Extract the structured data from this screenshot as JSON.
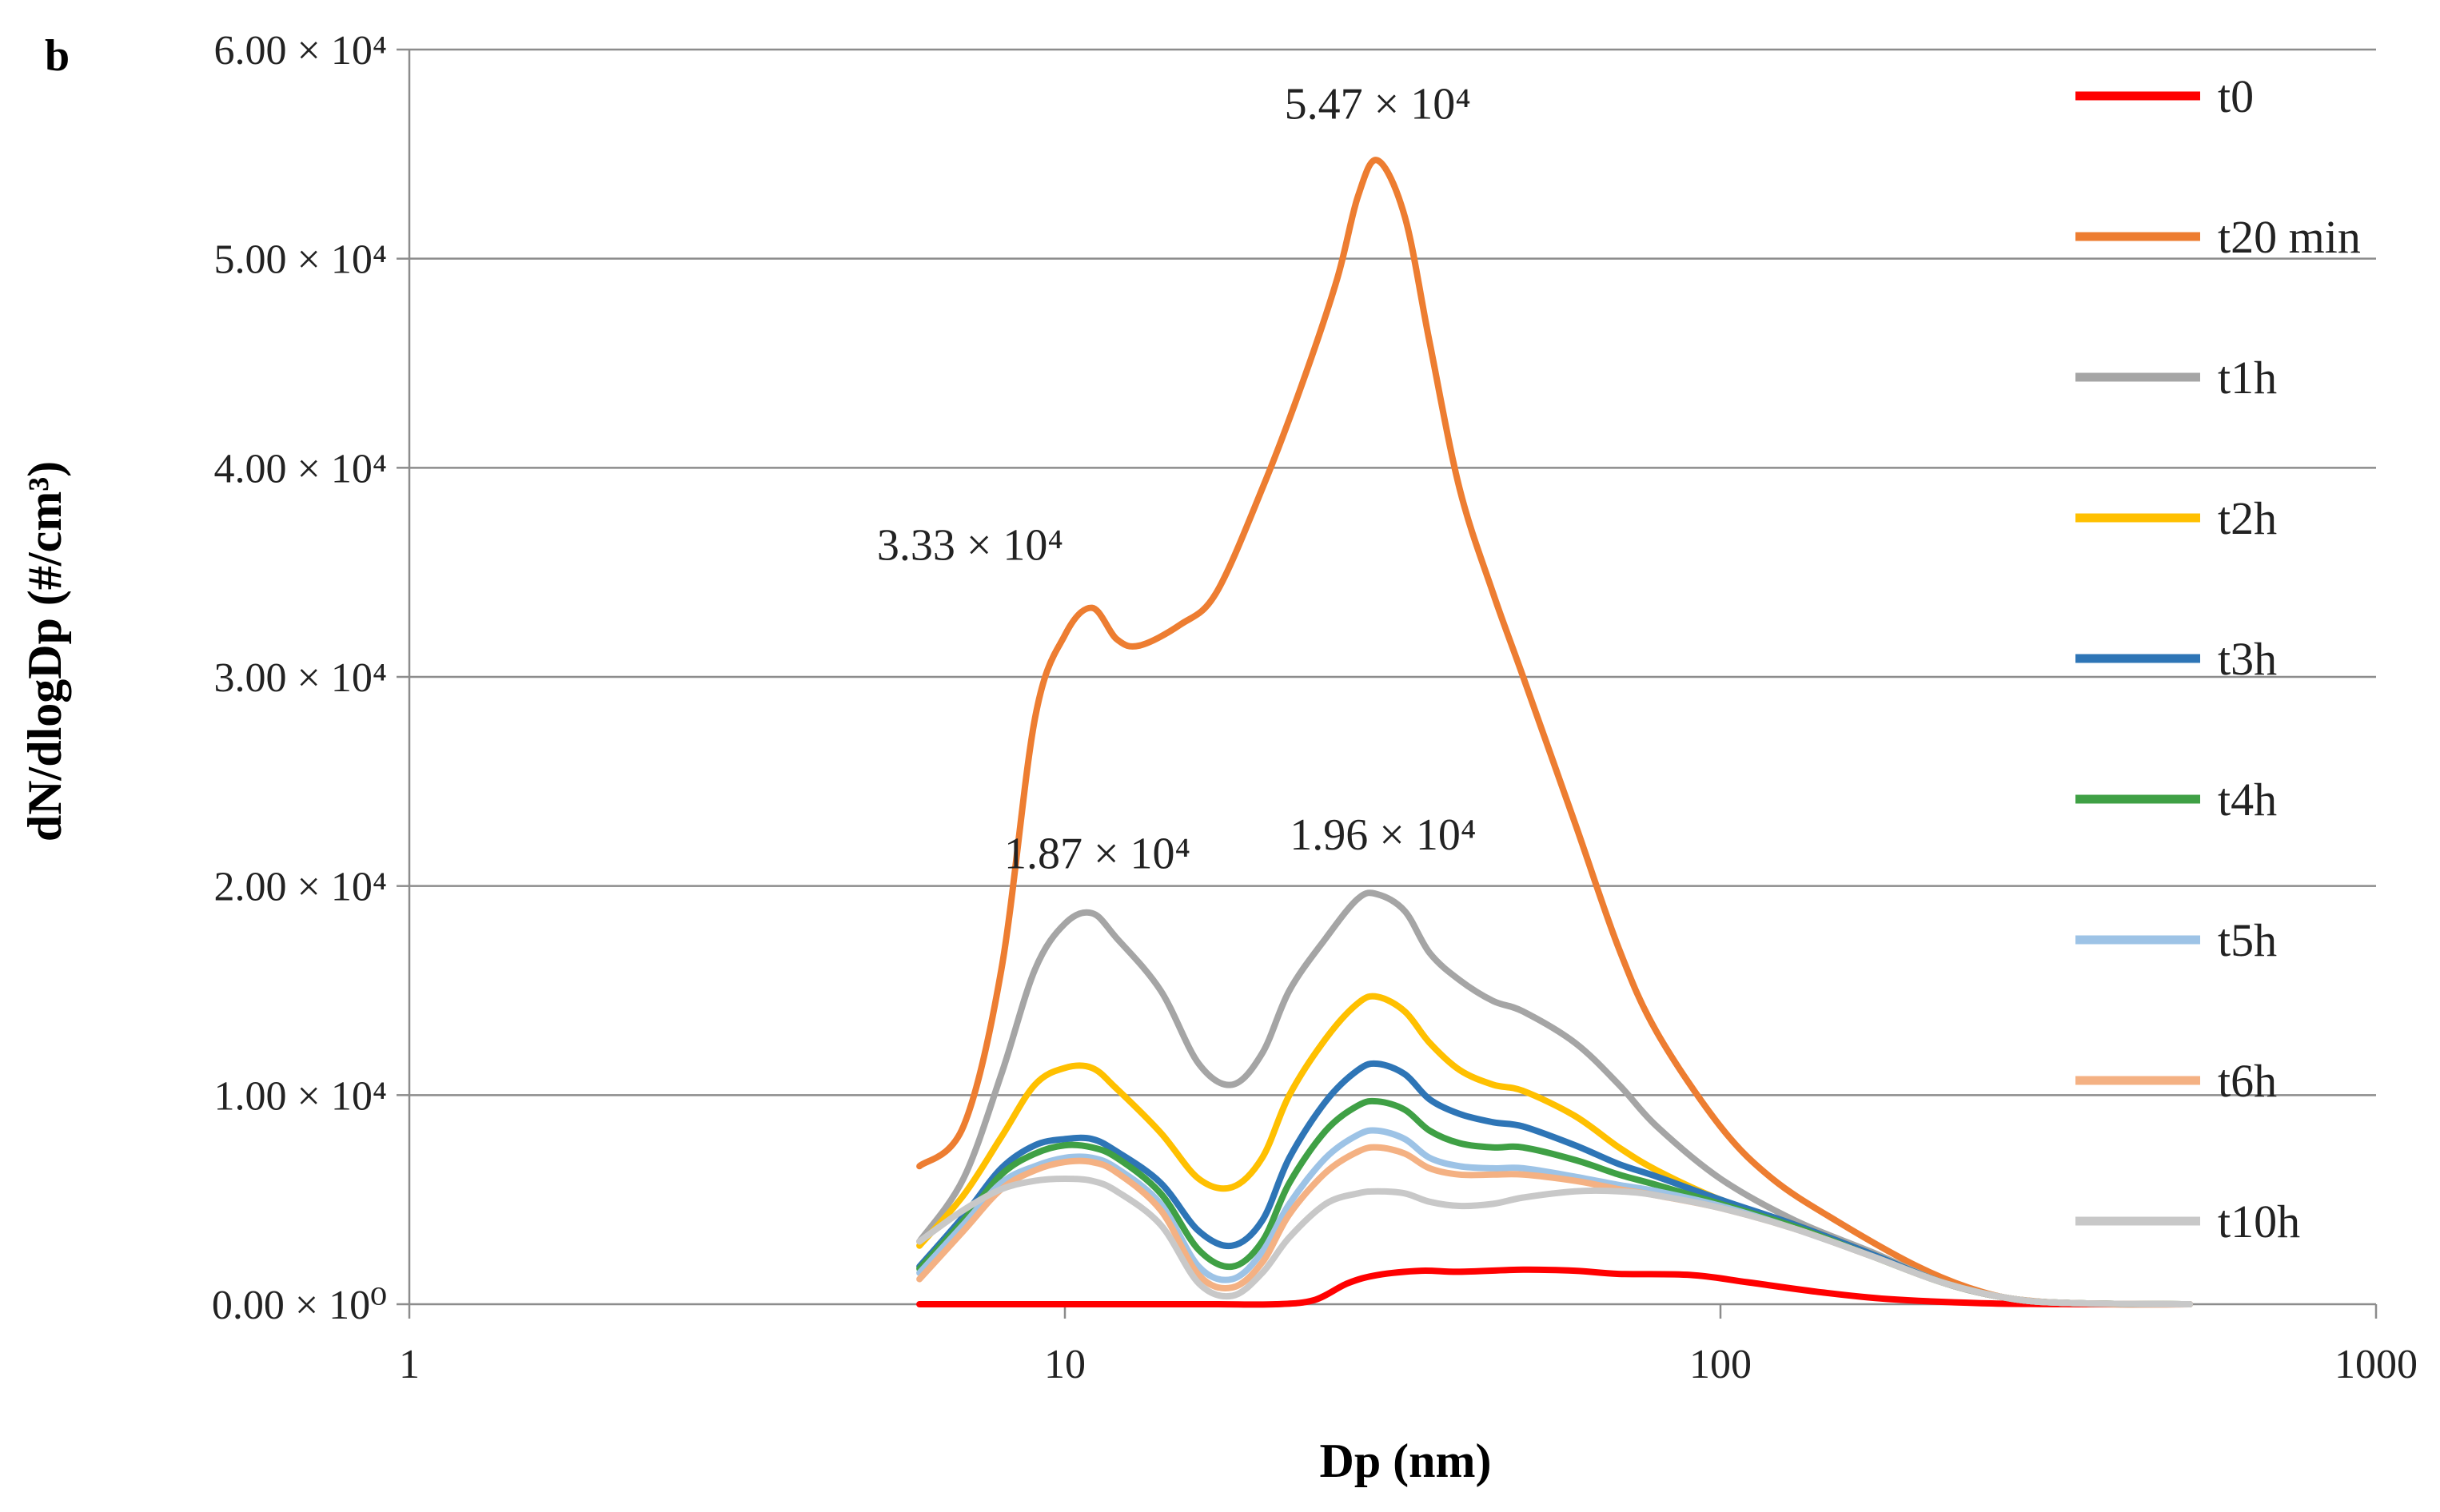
{
  "chart_data": {
    "type": "line",
    "panel_label": "b",
    "title": "",
    "xlabel": "Dp (nm)",
    "ylabel": "dN/dlogDp (#/cm³)",
    "xscale": "log",
    "xlim": [
      1,
      1000
    ],
    "ylim": [
      0,
      60000
    ],
    "grid": "horizontal",
    "legend_position": "right",
    "x_ticks": [
      {
        "value": 1,
        "label": "1"
      },
      {
        "value": 10,
        "label": "10"
      },
      {
        "value": 100,
        "label": "100"
      },
      {
        "value": 1000,
        "label": "1000"
      }
    ],
    "y_ticks": [
      {
        "value": 0,
        "label": "0.00 × 10⁰"
      },
      {
        "value": 10000,
        "label": "1.00 × 10⁴"
      },
      {
        "value": 20000,
        "label": "2.00 × 10⁴"
      },
      {
        "value": 30000,
        "label": "3.00 × 10⁴"
      },
      {
        "value": 40000,
        "label": "4.00 × 10⁴"
      },
      {
        "value": 50000,
        "label": "5.00 × 10⁴"
      },
      {
        "value": 60000,
        "label": "6.00 × 10⁴"
      }
    ],
    "annotations": [
      {
        "text": "5.47 × 10⁴",
        "x": 30,
        "y": 54700,
        "anchor": "above"
      },
      {
        "text": "3.33 × 10⁴",
        "x": 11,
        "y": 33300,
        "anchor": "above-left"
      },
      {
        "text": "1.87 × 10⁴",
        "x": 11,
        "y": 18700,
        "anchor": "above-right"
      },
      {
        "text": "1.96 × 10⁴",
        "x": 30,
        "y": 19600,
        "anchor": "above-right"
      }
    ],
    "series": [
      {
        "name": "t0",
        "color": "#ff0000",
        "points": [
          [
            6,
            0
          ],
          [
            8,
            0
          ],
          [
            10,
            0
          ],
          [
            13,
            0
          ],
          [
            17,
            0
          ],
          [
            21,
            0
          ],
          [
            24,
            200
          ],
          [
            27,
            1000
          ],
          [
            30,
            1400
          ],
          [
            35,
            1600
          ],
          [
            40,
            1550
          ],
          [
            50,
            1650
          ],
          [
            60,
            1600
          ],
          [
            70,
            1450
          ],
          [
            90,
            1400
          ],
          [
            110,
            1050
          ],
          [
            140,
            600
          ],
          [
            180,
            250
          ],
          [
            250,
            50
          ],
          [
            350,
            0
          ],
          [
            520,
            0
          ]
        ]
      },
      {
        "name": "t20 min",
        "color": "#ed7d31",
        "points": [
          [
            6,
            6600
          ],
          [
            7,
            8500
          ],
          [
            8,
            16000
          ],
          [
            9,
            28000
          ],
          [
            10,
            32000
          ],
          [
            11,
            33300
          ],
          [
            12,
            31800
          ],
          [
            13,
            31500
          ],
          [
            15,
            32500
          ],
          [
            17,
            34000
          ],
          [
            20,
            39000
          ],
          [
            23,
            44000
          ],
          [
            26,
            49000
          ],
          [
            28,
            53000
          ],
          [
            30,
            54700
          ],
          [
            33,
            52000
          ],
          [
            36,
            46000
          ],
          [
            40,
            39000
          ],
          [
            45,
            34000
          ],
          [
            50,
            30000
          ],
          [
            60,
            23000
          ],
          [
            70,
            17000
          ],
          [
            80,
            13000
          ],
          [
            100,
            8500
          ],
          [
            120,
            6000
          ],
          [
            150,
            4000
          ],
          [
            200,
            1800
          ],
          [
            250,
            600
          ],
          [
            300,
            150
          ],
          [
            400,
            0
          ],
          [
            520,
            0
          ]
        ]
      },
      {
        "name": "t1h",
        "color": "#a5a5a5",
        "points": [
          [
            6,
            3000
          ],
          [
            7,
            6000
          ],
          [
            8,
            11000
          ],
          [
            9,
            16000
          ],
          [
            10,
            18200
          ],
          [
            11,
            18700
          ],
          [
            12,
            17500
          ],
          [
            14,
            15000
          ],
          [
            16,
            11500
          ],
          [
            18,
            10500
          ],
          [
            20,
            12000
          ],
          [
            22,
            15000
          ],
          [
            25,
            17500
          ],
          [
            28,
            19400
          ],
          [
            30,
            19600
          ],
          [
            33,
            18800
          ],
          [
            36,
            16800
          ],
          [
            40,
            15500
          ],
          [
            45,
            14500
          ],
          [
            50,
            14000
          ],
          [
            60,
            12500
          ],
          [
            70,
            10500
          ],
          [
            80,
            8500
          ],
          [
            100,
            6000
          ],
          [
            130,
            4000
          ],
          [
            170,
            2500
          ],
          [
            220,
            1000
          ],
          [
            280,
            250
          ],
          [
            350,
            50
          ],
          [
            520,
            0
          ]
        ]
      },
      {
        "name": "t2h",
        "color": "#ffc000",
        "points": [
          [
            6,
            2800
          ],
          [
            7,
            5200
          ],
          [
            8,
            8000
          ],
          [
            9,
            10500
          ],
          [
            10,
            11300
          ],
          [
            11,
            11300
          ],
          [
            12,
            10300
          ],
          [
            14,
            8200
          ],
          [
            16,
            6000
          ],
          [
            18,
            5600
          ],
          [
            20,
            7000
          ],
          [
            22,
            10000
          ],
          [
            25,
            12700
          ],
          [
            28,
            14400
          ],
          [
            30,
            14700
          ],
          [
            33,
            14000
          ],
          [
            36,
            12500
          ],
          [
            40,
            11200
          ],
          [
            45,
            10500
          ],
          [
            50,
            10200
          ],
          [
            60,
            9000
          ],
          [
            70,
            7500
          ],
          [
            80,
            6400
          ],
          [
            100,
            5000
          ],
          [
            130,
            3800
          ],
          [
            170,
            2400
          ],
          [
            220,
            1000
          ],
          [
            280,
            250
          ],
          [
            350,
            50
          ],
          [
            520,
            0
          ]
        ]
      },
      {
        "name": "t3h",
        "color": "#2e75b6",
        "points": [
          [
            6,
            1800
          ],
          [
            7,
            4200
          ],
          [
            8,
            6500
          ],
          [
            9,
            7600
          ],
          [
            10,
            7900
          ],
          [
            11,
            7900
          ],
          [
            12,
            7300
          ],
          [
            14,
            5800
          ],
          [
            16,
            3500
          ],
          [
            18,
            2800
          ],
          [
            20,
            4000
          ],
          [
            22,
            7000
          ],
          [
            25,
            9700
          ],
          [
            28,
            11200
          ],
          [
            30,
            11500
          ],
          [
            33,
            11000
          ],
          [
            36,
            9800
          ],
          [
            40,
            9100
          ],
          [
            45,
            8700
          ],
          [
            50,
            8500
          ],
          [
            60,
            7600
          ],
          [
            70,
            6700
          ],
          [
            80,
            6100
          ],
          [
            100,
            5000
          ],
          [
            130,
            3800
          ],
          [
            170,
            2400
          ],
          [
            220,
            1000
          ],
          [
            280,
            250
          ],
          [
            350,
            50
          ],
          [
            520,
            0
          ]
        ]
      },
      {
        "name": "t4h",
        "color": "#3fa045",
        "points": [
          [
            6,
            1700
          ],
          [
            7,
            4000
          ],
          [
            8,
            6200
          ],
          [
            9,
            7200
          ],
          [
            10,
            7600
          ],
          [
            11,
            7500
          ],
          [
            12,
            7000
          ],
          [
            14,
            5300
          ],
          [
            16,
            2600
          ],
          [
            18,
            1800
          ],
          [
            20,
            3000
          ],
          [
            22,
            5800
          ],
          [
            25,
            8300
          ],
          [
            28,
            9500
          ],
          [
            30,
            9700
          ],
          [
            33,
            9300
          ],
          [
            36,
            8300
          ],
          [
            40,
            7700
          ],
          [
            45,
            7500
          ],
          [
            50,
            7500
          ],
          [
            60,
            6900
          ],
          [
            70,
            6200
          ],
          [
            80,
            5700
          ],
          [
            100,
            4800
          ],
          [
            130,
            3700
          ],
          [
            170,
            2300
          ],
          [
            220,
            1000
          ],
          [
            280,
            250
          ],
          [
            350,
            50
          ],
          [
            520,
            0
          ]
        ]
      },
      {
        "name": "t5h",
        "color": "#9dc3e6",
        "points": [
          [
            6,
            1500
          ],
          [
            7,
            3800
          ],
          [
            8,
            5800
          ],
          [
            9,
            6600
          ],
          [
            10,
            7000
          ],
          [
            11,
            7000
          ],
          [
            12,
            6500
          ],
          [
            14,
            4800
          ],
          [
            16,
            1800
          ],
          [
            18,
            1200
          ],
          [
            20,
            2500
          ],
          [
            22,
            4800
          ],
          [
            25,
            7000
          ],
          [
            28,
            8100
          ],
          [
            30,
            8300
          ],
          [
            33,
            7900
          ],
          [
            36,
            7000
          ],
          [
            40,
            6600
          ],
          [
            45,
            6500
          ],
          [
            50,
            6500
          ],
          [
            60,
            6100
          ],
          [
            70,
            5700
          ],
          [
            80,
            5400
          ],
          [
            100,
            4700
          ],
          [
            130,
            3600
          ],
          [
            170,
            2300
          ],
          [
            220,
            1000
          ],
          [
            280,
            250
          ],
          [
            350,
            50
          ],
          [
            520,
            0
          ]
        ]
      },
      {
        "name": "t6h",
        "color": "#f4b183",
        "points": [
          [
            6,
            1200
          ],
          [
            7,
            3500
          ],
          [
            8,
            5500
          ],
          [
            9,
            6400
          ],
          [
            10,
            6800
          ],
          [
            11,
            6800
          ],
          [
            12,
            6300
          ],
          [
            14,
            4500
          ],
          [
            16,
            1400
          ],
          [
            18,
            800
          ],
          [
            20,
            2000
          ],
          [
            22,
            4300
          ],
          [
            25,
            6300
          ],
          [
            28,
            7300
          ],
          [
            30,
            7500
          ],
          [
            33,
            7200
          ],
          [
            36,
            6500
          ],
          [
            40,
            6200
          ],
          [
            45,
            6200
          ],
          [
            50,
            6200
          ],
          [
            60,
            5900
          ],
          [
            70,
            5500
          ],
          [
            80,
            5200
          ],
          [
            100,
            4600
          ],
          [
            130,
            3600
          ],
          [
            170,
            2300
          ],
          [
            220,
            1000
          ],
          [
            280,
            250
          ],
          [
            350,
            50
          ],
          [
            520,
            0
          ]
        ]
      },
      {
        "name": "t10h",
        "color": "#c8c8c8",
        "points": [
          [
            6,
            3000
          ],
          [
            7,
            4500
          ],
          [
            8,
            5500
          ],
          [
            9,
            5900
          ],
          [
            10,
            6000
          ],
          [
            11,
            5900
          ],
          [
            12,
            5400
          ],
          [
            14,
            3800
          ],
          [
            16,
            1000
          ],
          [
            18,
            400
          ],
          [
            20,
            1500
          ],
          [
            22,
            3200
          ],
          [
            25,
            4800
          ],
          [
            28,
            5300
          ],
          [
            30,
            5400
          ],
          [
            33,
            5300
          ],
          [
            36,
            4900
          ],
          [
            40,
            4700
          ],
          [
            45,
            4800
          ],
          [
            50,
            5100
          ],
          [
            60,
            5400
          ],
          [
            70,
            5400
          ],
          [
            80,
            5200
          ],
          [
            100,
            4600
          ],
          [
            130,
            3600
          ],
          [
            170,
            2300
          ],
          [
            220,
            1000
          ],
          [
            280,
            250
          ],
          [
            350,
            50
          ],
          [
            520,
            0
          ]
        ]
      }
    ]
  }
}
